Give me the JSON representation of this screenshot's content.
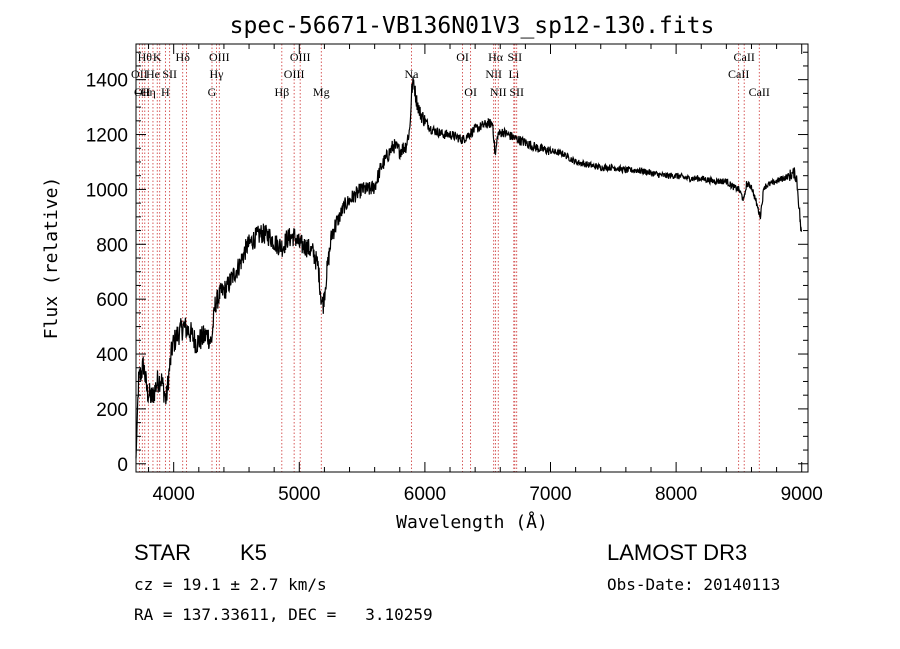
{
  "chart_data": {
    "type": "line",
    "title": "spec-56671-VB136N01V3_sp12-130.fits",
    "xlabel": "Wavelength (Å)",
    "ylabel": "Flux (relative)",
    "xlim": [
      3700,
      9050
    ],
    "ylim": [
      -30,
      1530
    ],
    "x_ticks": [
      4000,
      5000,
      6000,
      7000,
      8000,
      9000
    ],
    "y_ticks": [
      0,
      200,
      400,
      600,
      800,
      1000,
      1200,
      1400
    ],
    "x_tick_labels": [
      "4000",
      "5000",
      "6000",
      "7000",
      "8000",
      "9000"
    ],
    "y_tick_labels": [
      "0",
      "200",
      "400",
      "600",
      "800",
      "1000",
      "1200",
      "1400"
    ],
    "spectrum_anchors": [
      [
        3700,
        20
      ],
      [
        3720,
        300
      ],
      [
        3760,
        360
      ],
      [
        3790,
        260
      ],
      [
        3830,
        240
      ],
      [
        3870,
        300
      ],
      [
        3900,
        310
      ],
      [
        3940,
        230
      ],
      [
        3960,
        320
      ],
      [
        3990,
        430
      ],
      [
        4030,
        470
      ],
      [
        4080,
        500
      ],
      [
        4130,
        480
      ],
      [
        4180,
        440
      ],
      [
        4230,
        460
      ],
      [
        4270,
        470
      ],
      [
        4300,
        440
      ],
      [
        4330,
        580
      ],
      [
        4370,
        620
      ],
      [
        4420,
        640
      ],
      [
        4480,
        690
      ],
      [
        4530,
        730
      ],
      [
        4580,
        790
      ],
      [
        4640,
        820
      ],
      [
        4700,
        840
      ],
      [
        4760,
        830
      ],
      [
        4820,
        800
      ],
      [
        4870,
        790
      ],
      [
        4900,
        820
      ],
      [
        4960,
        830
      ],
      [
        5000,
        800
      ],
      [
        5060,
        790
      ],
      [
        5110,
        770
      ],
      [
        5150,
        720
      ],
      [
        5175,
        600
      ],
      [
        5190,
        580
      ],
      [
        5220,
        700
      ],
      [
        5260,
        840
      ],
      [
        5300,
        880
      ],
      [
        5360,
        940
      ],
      [
        5420,
        970
      ],
      [
        5500,
        1000
      ],
      [
        5560,
        1000
      ],
      [
        5600,
        1010
      ],
      [
        5650,
        1080
      ],
      [
        5700,
        1120
      ],
      [
        5750,
        1160
      ],
      [
        5800,
        1140
      ],
      [
        5850,
        1160
      ],
      [
        5880,
        1220
      ],
      [
        5895,
        1360
      ],
      [
        5910,
        1400
      ],
      [
        5930,
        1330
      ],
      [
        5960,
        1280
      ],
      [
        6000,
        1250
      ],
      [
        6050,
        1220
      ],
      [
        6100,
        1210
      ],
      [
        6150,
        1200
      ],
      [
        6200,
        1200
      ],
      [
        6260,
        1190
      ],
      [
        6300,
        1180
      ],
      [
        6350,
        1200
      ],
      [
        6400,
        1220
      ],
      [
        6450,
        1230
      ],
      [
        6500,
        1240
      ],
      [
        6540,
        1240
      ],
      [
        6560,
        1120
      ],
      [
        6580,
        1200
      ],
      [
        6620,
        1210
      ],
      [
        6700,
        1190
      ],
      [
        6800,
        1170
      ],
      [
        6900,
        1150
      ],
      [
        7000,
        1140
      ],
      [
        7100,
        1130
      ],
      [
        7200,
        1100
      ],
      [
        7300,
        1090
      ],
      [
        7400,
        1080
      ],
      [
        7500,
        1080
      ],
      [
        7600,
        1070
      ],
      [
        7700,
        1070
      ],
      [
        7800,
        1060
      ],
      [
        7900,
        1050
      ],
      [
        8000,
        1050
      ],
      [
        8100,
        1040
      ],
      [
        8200,
        1040
      ],
      [
        8300,
        1030
      ],
      [
        8400,
        1030
      ],
      [
        8450,
        1010
      ],
      [
        8500,
        1000
      ],
      [
        8540,
        960
      ],
      [
        8560,
        1020
      ],
      [
        8600,
        1010
      ],
      [
        8640,
        950
      ],
      [
        8670,
        900
      ],
      [
        8700,
        1010
      ],
      [
        8750,
        1020
      ],
      [
        8800,
        1030
      ],
      [
        8850,
        1040
      ],
      [
        8900,
        1050
      ],
      [
        8940,
        1060
      ],
      [
        8960,
        1040
      ],
      [
        8980,
        930
      ],
      [
        9000,
        820
      ]
    ],
    "spectral_lines": [
      {
        "x": 3727,
        "labels": [
          "OII"
        ],
        "rows": [
          2
        ]
      },
      {
        "x": 3750,
        "labels": [
          "OII"
        ],
        "rows": [
          3
        ]
      },
      {
        "x": 3770,
        "labels": [
          "Hθ"
        ],
        "rows": [
          1
        ]
      },
      {
        "x": 3798,
        "labels": [
          "Hη"
        ],
        "rows": [
          3
        ]
      },
      {
        "x": 3835,
        "labels": [
          "He"
        ],
        "rows": [
          2
        ]
      },
      {
        "x": 3869,
        "labels": [
          "K"
        ],
        "rows": [
          1
        ]
      },
      {
        "x": 3889,
        "labels": [],
        "rows": []
      },
      {
        "x": 3934,
        "labels": [
          "H"
        ],
        "rows": [
          3
        ]
      },
      {
        "x": 3968,
        "labels": [
          "SII"
        ],
        "rows": [
          2
        ]
      },
      {
        "x": 4072,
        "labels": [
          "Hδ"
        ],
        "rows": [
          1
        ]
      },
      {
        "x": 4102,
        "labels": [],
        "rows": []
      },
      {
        "x": 4305,
        "labels": [
          "G"
        ],
        "rows": [
          3
        ]
      },
      {
        "x": 4341,
        "labels": [
          "Hγ"
        ],
        "rows": [
          2
        ]
      },
      {
        "x": 4363,
        "labels": [
          "OIII"
        ],
        "rows": [
          1
        ]
      },
      {
        "x": 4861,
        "labels": [
          "Hβ"
        ],
        "rows": [
          3
        ]
      },
      {
        "x": 4959,
        "labels": [
          "OIII"
        ],
        "rows": [
          2
        ]
      },
      {
        "x": 5007,
        "labels": [
          "OIII"
        ],
        "rows": [
          1
        ]
      },
      {
        "x": 5175,
        "labels": [
          "Mg"
        ],
        "rows": [
          3
        ]
      },
      {
        "x": 5893,
        "labels": [
          "Na"
        ],
        "rows": [
          2
        ]
      },
      {
        "x": 6300,
        "labels": [
          "OI"
        ],
        "rows": [
          1
        ]
      },
      {
        "x": 6364,
        "labels": [
          "OI"
        ],
        "rows": [
          3
        ]
      },
      {
        "x": 6548,
        "labels": [
          "NII"
        ],
        "rows": [
          2
        ]
      },
      {
        "x": 6563,
        "labels": [
          "Hα"
        ],
        "rows": [
          1
        ]
      },
      {
        "x": 6584,
        "labels": [
          "NII"
        ],
        "rows": [
          3
        ]
      },
      {
        "x": 6708,
        "labels": [
          "Li"
        ],
        "rows": [
          2
        ]
      },
      {
        "x": 6716,
        "labels": [
          "SII"
        ],
        "rows": [
          1
        ]
      },
      {
        "x": 6731,
        "labels": [
          "SII"
        ],
        "rows": [
          3
        ]
      },
      {
        "x": 8498,
        "labels": [
          "CaII"
        ],
        "rows": [
          2
        ]
      },
      {
        "x": 8542,
        "labels": [
          "CaII"
        ],
        "rows": [
          1
        ]
      },
      {
        "x": 8662,
        "labels": [
          "CaII"
        ],
        "rows": [
          3
        ]
      }
    ]
  },
  "info": {
    "class": "STAR",
    "subclass": "K5",
    "survey": "LAMOST DR3",
    "cz_text": "cz = 19.1 ± 2.7 km/s",
    "obs_date": "Obs-Date: 20140113",
    "radec_text": "RA = 137.33611, DEC =   3.10259"
  },
  "colors": {
    "spectrum": "#000000",
    "line_marker": "#cc3333",
    "axis": "#000000"
  }
}
